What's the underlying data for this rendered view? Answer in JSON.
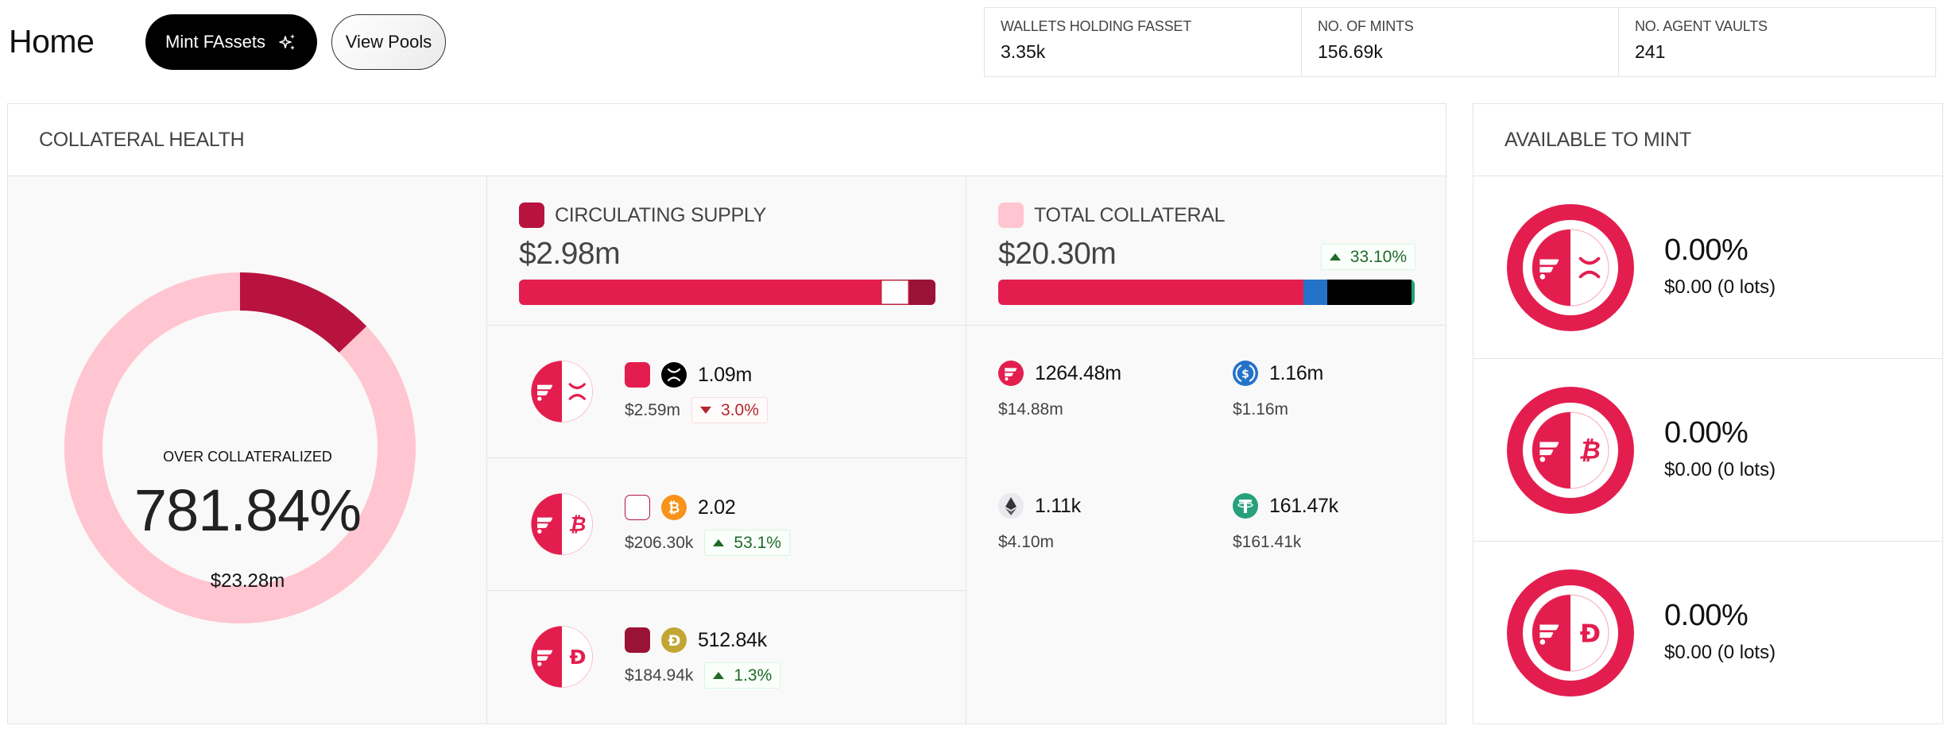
{
  "header": {
    "title": "Home",
    "mint_button": "Mint FAssets",
    "mint_icon": "sparkles-icon",
    "pools_button": "View Pools"
  },
  "stats": [
    {
      "label": "WALLETS HOLDING FASSET",
      "value": "3.35k"
    },
    {
      "label": "NO. OF MINTS",
      "value": "156.69k"
    },
    {
      "label": "NO. AGENT VAULTS",
      "value": "241"
    }
  ],
  "colors": {
    "brand": "#E31E4F",
    "supply_dark": "#B8133F",
    "supply_swatch_doge": "#9B1237",
    "collateral_light": "#FFC5D0",
    "usdc": "#2473C8",
    "eth_bar": "#000000",
    "usdt": "#26A17B",
    "up": "#1E6B27",
    "down": "#B3262E"
  },
  "collateral_health": {
    "title": "COLLATERAL HEALTH",
    "donut": {
      "label": "OVER COLLATERALIZED",
      "ratio": "781.84%",
      "total": "$23.28m",
      "segments": [
        {
          "name": "Circulating supply",
          "value": 2.98,
          "color": "#B8133F"
        },
        {
          "name": "Total collateral",
          "value": 20.3,
          "color": "#FFC5D0"
        }
      ]
    },
    "circulating_supply": {
      "label": "CIRCULATING SUPPLY",
      "amount": "$2.98m",
      "bar": [
        {
          "name": "FXRP",
          "value": 2.59,
          "color": "#E31E4F"
        },
        {
          "name": "FBTC",
          "value": 0.2063,
          "color": "#FFFFFF"
        },
        {
          "name": "FDOGE",
          "value": 0.18494,
          "color": "#9B1237"
        }
      ],
      "assets": [
        {
          "name": "FXRP",
          "coin_icon": "xrp-icon",
          "swatch": "#E31E4F",
          "swatch_outline": false,
          "amount": "1.09m",
          "usd": "$2.59m",
          "change": "3.0%",
          "direction": "down",
          "glyph": "X"
        },
        {
          "name": "FBTC",
          "coin_icon": "btc-icon",
          "swatch": "#FFFFFF",
          "swatch_outline": true,
          "amount": "2.02",
          "usd": "$206.30k",
          "change": "53.1%",
          "direction": "up",
          "glyph": "B"
        },
        {
          "name": "FDOGE",
          "coin_icon": "doge-icon",
          "swatch": "#9B1237",
          "swatch_outline": false,
          "amount": "512.84k",
          "usd": "$184.94k",
          "change": "1.3%",
          "direction": "up",
          "glyph": "D"
        }
      ]
    },
    "total_collateral": {
      "label": "TOTAL COLLATERAL",
      "amount": "$20.30m",
      "change": "33.10%",
      "direction": "up",
      "bar": [
        {
          "name": "FLR",
          "value": 14.88,
          "color": "#E31E4F"
        },
        {
          "name": "USDC",
          "value": 1.16,
          "color": "#2473C8"
        },
        {
          "name": "ETH",
          "value": 4.1,
          "color": "#000000"
        },
        {
          "name": "USDT",
          "value": 0.16141,
          "color": "#26A17B"
        }
      ],
      "assets": [
        {
          "name": "FLR",
          "icon": "flare-icon",
          "amount": "1264.48m",
          "usd": "$14.88m"
        },
        {
          "name": "USDC",
          "icon": "usdc-icon",
          "amount": "1.16m",
          "usd": "$1.16m"
        },
        {
          "name": "ETH",
          "icon": "eth-icon",
          "amount": "1.11k",
          "usd": "$4.10m"
        },
        {
          "name": "USDT",
          "icon": "usdt-icon",
          "amount": "161.47k",
          "usd": "$161.41k"
        }
      ]
    }
  },
  "available_to_mint": {
    "title": "AVAILABLE TO MINT",
    "items": [
      {
        "name": "FXRP",
        "glyph": "X",
        "percent": "0.00%",
        "usd": "$0.00 (0 lots)"
      },
      {
        "name": "FBTC",
        "glyph": "B",
        "percent": "0.00%",
        "usd": "$0.00 (0 lots)"
      },
      {
        "name": "FDOGE",
        "glyph": "D",
        "percent": "0.00%",
        "usd": "$0.00 (0 lots)"
      }
    ]
  }
}
